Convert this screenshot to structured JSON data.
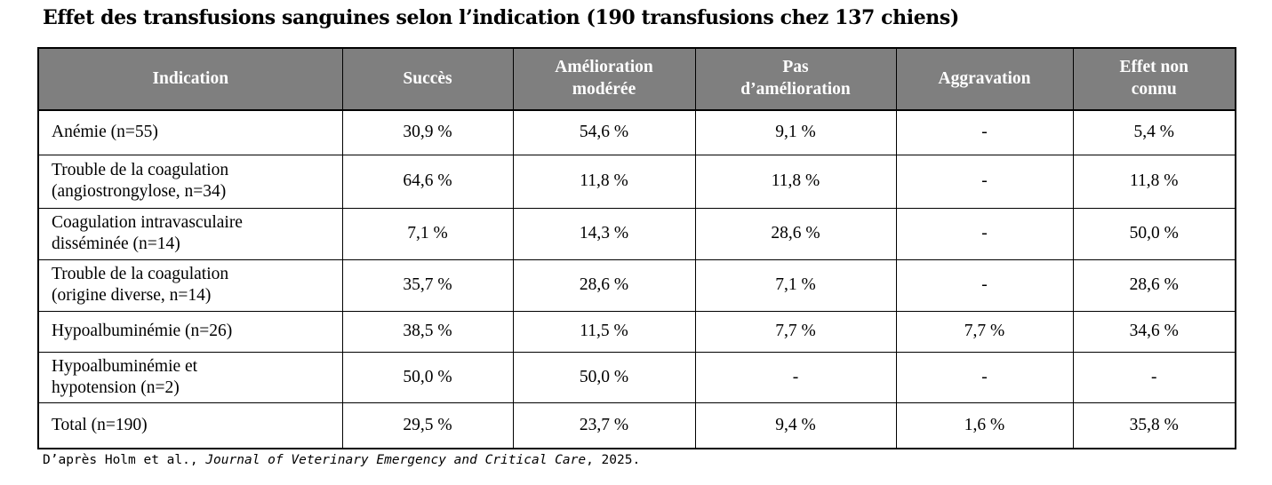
{
  "title": "Effet des transfusions sanguines selon l’indication (190 transfusions chez 137 chiens)",
  "table": {
    "headers": [
      "Indication",
      "Succès",
      "Amélioration\nmodérée",
      "Pas\nd’amélioration",
      "Aggravation",
      "Effet non\nconnu"
    ],
    "rows": [
      {
        "indication": "Anémie (n=55)",
        "cells": [
          "30,9 %",
          "54,6 %",
          "9,1 %",
          "-",
          "5,4 %"
        ]
      },
      {
        "indication": "Trouble de la coagulation\n(angiostrongylose, n=34)",
        "cells": [
          "64,6 %",
          "11,8 %",
          "11,8 %",
          "-",
          "11,8 %"
        ]
      },
      {
        "indication": "Coagulation intravasculaire\ndisséminée (n=14)",
        "cells": [
          "7,1 %",
          "14,3 %",
          "28,6 %",
          "-",
          "50,0 %"
        ]
      },
      {
        "indication": "Trouble de la coagulation\n(origine diverse, n=14)",
        "cells": [
          "35,7 %",
          "28,6 %",
          "7,1 %",
          "-",
          "28,6 %"
        ]
      },
      {
        "indication": "Hypoalbuminémie (n=26)",
        "cells": [
          "38,5 %",
          "11,5 %",
          "7,7 %",
          "7,7 %",
          "34,6 %"
        ]
      },
      {
        "indication": "Hypoalbuminémie et\nhypotension (n=2)",
        "cells": [
          "50,0 %",
          "50,0 %",
          "-",
          "-",
          "-"
        ]
      },
      {
        "indication": "Total (n=190)",
        "cells": [
          "29,5 %",
          "23,7 %",
          "9,4 %",
          "1,6 %",
          "35,8 %"
        ]
      }
    ]
  },
  "citation": {
    "prefix": "D’après Holm et al., ",
    "journal": "Journal of Veterinary Emergency and Critical Care",
    "suffix": ", 2025."
  },
  "colors": {
    "header_bg": "#7f7f7f",
    "header_text": "#ffffff",
    "border": "#000000",
    "text": "#000000"
  }
}
